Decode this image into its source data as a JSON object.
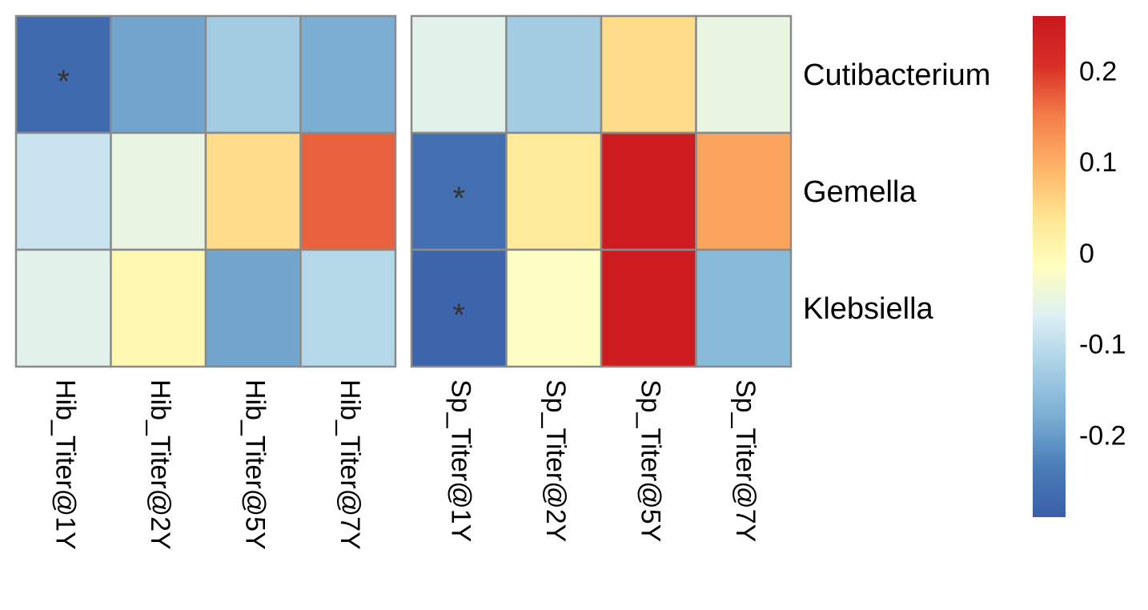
{
  "chart_data": {
    "type": "heatmap",
    "rows": [
      "Cutibacterium",
      "Gemella",
      "Klebsiella"
    ],
    "panels": [
      {
        "columns": [
          "Hib_Titer@1Y",
          "Hib_Titer@2Y",
          "Hib_Titer@5Y",
          "Hib_Titer@7Y"
        ],
        "values": [
          [
            -0.27,
            -0.19,
            -0.13,
            -0.18
          ],
          [
            -0.09,
            -0.05,
            0.05,
            0.17
          ],
          [
            -0.06,
            0.0,
            -0.19,
            -0.11
          ]
        ],
        "significant": [
          [
            true,
            false,
            false,
            false
          ],
          [
            false,
            false,
            false,
            false
          ],
          [
            false,
            false,
            false,
            false
          ]
        ]
      },
      {
        "columns": [
          "Sp_Titer@1Y",
          "Sp_Titer@2Y",
          "Sp_Titer@5Y",
          "Sp_Titer@7Y"
        ],
        "values": [
          [
            -0.06,
            -0.13,
            0.05,
            -0.05
          ],
          [
            -0.26,
            0.03,
            0.25,
            0.11
          ],
          [
            -0.28,
            -0.02,
            0.25,
            -0.16
          ]
        ],
        "significant": [
          [
            false,
            false,
            false,
            false
          ],
          [
            true,
            false,
            false,
            false
          ],
          [
            true,
            false,
            false,
            false
          ]
        ]
      }
    ],
    "significance_marker": "*",
    "colorbar": {
      "min": -0.29,
      "max": 0.26,
      "ticks": [
        0.2,
        0.1,
        0,
        -0.1,
        -0.2
      ],
      "tick_labels": [
        "0.2",
        "0.1",
        "0",
        "-0.1",
        "-0.2"
      ],
      "colors": [
        "#3A60A8",
        "#4A7CB8",
        "#7AAED3",
        "#A7CFE5",
        "#DCEFF4",
        "#FFFFBF",
        "#FEE591",
        "#FDB366",
        "#F47D4A",
        "#D73027",
        "#C9181E"
      ]
    }
  }
}
